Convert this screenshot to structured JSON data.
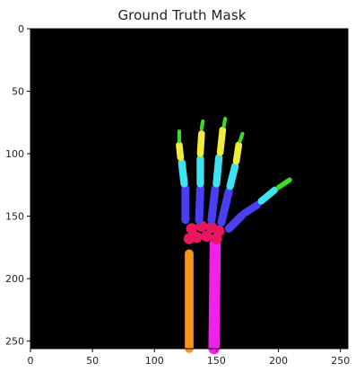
{
  "figure": {
    "title": "Ground Truth Mask"
  },
  "axes": {
    "xlim": [
      0,
      256
    ],
    "ylim": [
      256,
      0
    ],
    "x_ticks": [
      {
        "value": 0,
        "label": "0"
      },
      {
        "value": 50,
        "label": "50"
      },
      {
        "value": 100,
        "label": "100"
      },
      {
        "value": 150,
        "label": "150"
      },
      {
        "value": 200,
        "label": "200"
      },
      {
        "value": 250,
        "label": "250"
      }
    ],
    "y_ticks": [
      {
        "value": 0,
        "label": "0"
      },
      {
        "value": 50,
        "label": "50"
      },
      {
        "value": 100,
        "label": "100"
      },
      {
        "value": 150,
        "label": "150"
      },
      {
        "value": 200,
        "label": "200"
      },
      {
        "value": 250,
        "label": "250"
      }
    ]
  },
  "image": {
    "background": "#000000",
    "colors": {
      "fingertip": "#3fd92a",
      "distal": "#f2ec3a",
      "middle": "#3fe3ef",
      "proximal": "#4b3ff2",
      "carpal": "#e8165e",
      "ulna": "#f7961c",
      "radius": "#f021ea"
    }
  }
}
